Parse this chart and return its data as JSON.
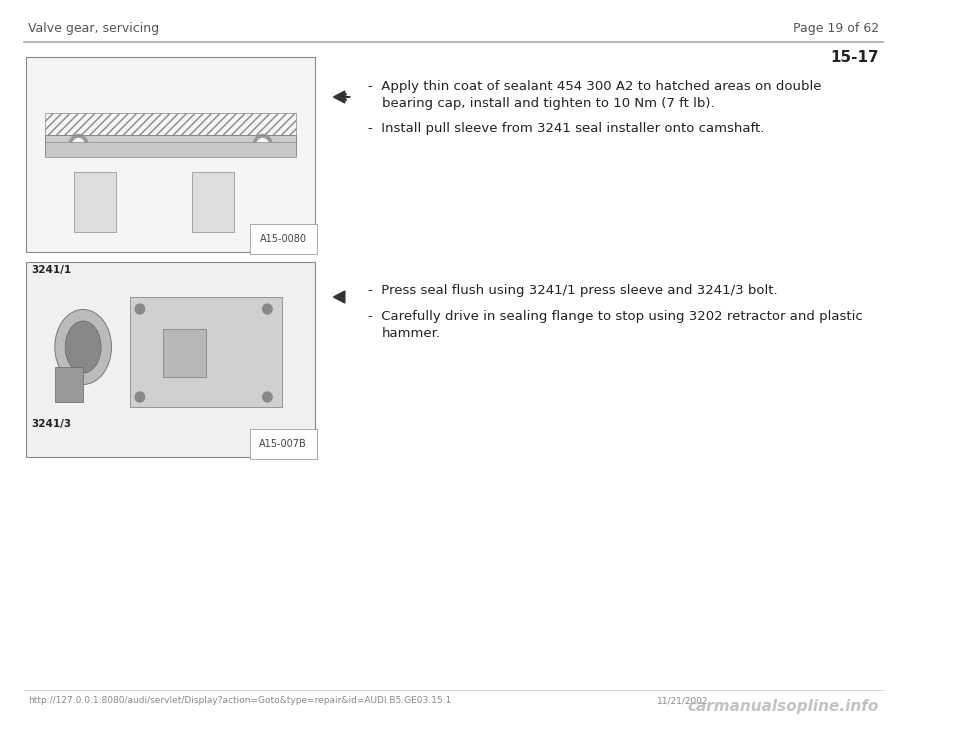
{
  "bg_color": "#ffffff",
  "header_left": "Valve gear, servicing",
  "header_right": "Page 19 of 62",
  "section_number": "15-17",
  "footer_url": "http://127.0.0.1:8080/audi/servlet/Display?action=Goto&type=repair&id=AUDI.B5.GE03.15.1",
  "footer_date": "11/21/2002",
  "footer_watermark": "carmanualsopline.info",
  "block1_bullet1_line1": "Apply thin coat of sealant 454 300 A2 to hatched areas on double",
  "block1_bullet1_line2": "bearing cap, install and tighten to 10 Nm (7 ft lb).",
  "block1_bullet2": "Install pull sleeve from 3241 seal installer onto camshaft.",
  "block2_bullet1": "Press seal flush using 3241/1 press sleeve and 3241/3 bolt.",
  "block2_bullet2_line1": "Carefully drive in sealing flange to stop using 3202 retractor and plastic",
  "block2_bullet2_line2": "hammer.",
  "image1_label": "A15-0080",
  "image2_label": "A15-007B",
  "image2_tag1": "3241/1",
  "image2_tag2": "3241/3",
  "header_line_color": "#aaaaaa",
  "text_color": "#222222",
  "header_text_color": "#555555",
  "footer_text_color": "#888888",
  "watermark_color": "#aaaaaa",
  "header_fontsize": 9,
  "body_fontsize": 9.5,
  "section_fontsize": 11
}
